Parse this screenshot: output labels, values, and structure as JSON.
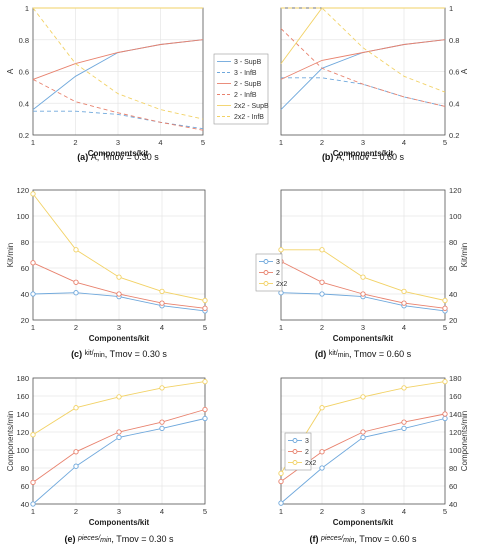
{
  "colors": {
    "blue": "#6fa8dc",
    "red": "#e8826e",
    "yellow": "#f2d266",
    "frame": "#555555",
    "grid": "#e6e6e6"
  },
  "legends": {
    "top": [
      "3 - SupB",
      "3 - InfB",
      "2 - SupB",
      "2 - InfB",
      "2x2 - SupB",
      "2x2 - InfB"
    ],
    "middle": [
      "3",
      "2",
      "2x2"
    ],
    "bottom": [
      "3",
      "2",
      "2x2"
    ]
  },
  "chart_data": [
    {
      "id": "a",
      "type": "line",
      "tag": "(a)",
      "caption": "A, Tmov = 0.30 s",
      "xlabel": "Components/kit",
      "ylabel": "A",
      "xlim": [
        1,
        5
      ],
      "ylim": [
        0.2,
        1
      ],
      "yticks": [
        0.2,
        0.4,
        0.6,
        0.8,
        1
      ],
      "yaxis": "left",
      "x": [
        1,
        2,
        3,
        4,
        5
      ],
      "series": [
        {
          "name": "3 - SupB",
          "values": [
            0.36,
            0.57,
            0.72,
            0.77,
            0.8
          ],
          "color": "blue",
          "dash": false
        },
        {
          "name": "3 - InfB",
          "values": [
            0.35,
            0.35,
            0.33,
            0.28,
            0.24
          ],
          "color": "blue",
          "dash": true
        },
        {
          "name": "2 - SupB",
          "values": [
            0.55,
            0.65,
            0.72,
            0.77,
            0.8
          ],
          "color": "red",
          "dash": false
        },
        {
          "name": "2 - InfB",
          "values": [
            0.55,
            0.41,
            0.34,
            0.28,
            0.23
          ],
          "color": "red",
          "dash": true
        },
        {
          "name": "2x2 - SupB",
          "values": [
            1.0,
            1.0,
            1.0,
            1.0,
            1.0
          ],
          "color": "yellow",
          "dash": false
        },
        {
          "name": "2x2 - InfB",
          "values": [
            1.0,
            0.65,
            0.46,
            0.36,
            0.3
          ],
          "color": "yellow",
          "dash": true
        }
      ]
    },
    {
      "id": "b",
      "type": "line",
      "tag": "(b)",
      "caption": "A, Tmov = 0.60 s",
      "xlabel": "Components/kit",
      "ylabel": "A",
      "xlim": [
        1,
        5
      ],
      "ylim": [
        0.2,
        1
      ],
      "yticks": [
        0.2,
        0.4,
        0.6,
        0.8,
        1
      ],
      "yaxis": "right",
      "x": [
        1,
        2,
        3,
        4,
        5
      ],
      "series": [
        {
          "name": "3 - SupB",
          "values": [
            0.36,
            0.62,
            0.72,
            0.77,
            0.8
          ],
          "color": "blue",
          "dash": false
        },
        {
          "name": "3 - InfB",
          "values": [
            0.56,
            0.56,
            0.52,
            0.44,
            0.38
          ],
          "color": "blue",
          "dash": true
        },
        {
          "name": "2 - SupB",
          "values": [
            0.55,
            0.67,
            0.72,
            0.77,
            0.8
          ],
          "color": "red",
          "dash": false
        },
        {
          "name": "2 - InfB",
          "values": [
            0.87,
            0.62,
            0.52,
            0.44,
            0.38
          ],
          "color": "red",
          "dash": true
        },
        {
          "name": "2x2 - SupB",
          "values": [
            0.65,
            1.0,
            1.0,
            1.0,
            1.0
          ],
          "color": "yellow",
          "dash": false
        },
        {
          "name": "2x2 - InfB",
          "values": [
            1.0,
            1.0,
            0.75,
            0.57,
            0.47
          ],
          "color": "yellow",
          "dash": true
        }
      ]
    },
    {
      "id": "c",
      "type": "line",
      "tag": "(c)",
      "caption_unit": "kit/",
      "caption_unit_sub": "min",
      "caption_rest": ", Tmov = 0.30 s",
      "xlabel": "Components/kit",
      "ylabel": "Kit/min",
      "xlim": [
        1,
        5
      ],
      "ylim": [
        20,
        120
      ],
      "yticks": [
        20,
        40,
        60,
        80,
        100,
        120
      ],
      "yaxis": "left",
      "x": [
        1,
        2,
        3,
        4,
        5
      ],
      "series": [
        {
          "name": "3",
          "values": [
            40,
            41,
            38,
            31,
            27
          ],
          "color": "blue",
          "dash": false
        },
        {
          "name": "2",
          "values": [
            64,
            49,
            40,
            33,
            29
          ],
          "color": "red",
          "dash": false
        },
        {
          "name": "2x2",
          "values": [
            117,
            74,
            53,
            42,
            35
          ],
          "color": "yellow",
          "dash": false
        }
      ]
    },
    {
      "id": "d",
      "type": "line",
      "tag": "(d)",
      "caption_unit": "kit/",
      "caption_unit_sub": "min",
      "caption_rest": ", Tmov = 0.60 s",
      "xlabel": "Components/kit",
      "ylabel": "Kit/min",
      "xlim": [
        1,
        5
      ],
      "ylim": [
        20,
        120
      ],
      "yticks": [
        20,
        40,
        60,
        80,
        100,
        120
      ],
      "yaxis": "right",
      "x": [
        1,
        2,
        3,
        4,
        5
      ],
      "series": [
        {
          "name": "3",
          "values": [
            41,
            40,
            38,
            31,
            27
          ],
          "color": "blue",
          "dash": false
        },
        {
          "name": "2",
          "values": [
            65,
            49,
            40,
            33,
            29
          ],
          "color": "red",
          "dash": false
        },
        {
          "name": "2x2",
          "values": [
            74,
            74,
            53,
            42,
            35
          ],
          "color": "yellow",
          "dash": false
        }
      ]
    },
    {
      "id": "e",
      "type": "line",
      "tag": "(e)",
      "caption_unit": "pieces/",
      "caption_unit_sub": "min",
      "caption_rest": ", Tmov = 0.30 s",
      "xlabel": "Components/kit",
      "ylabel": "Components/min",
      "xlim": [
        1,
        5
      ],
      "ylim": [
        40,
        180
      ],
      "yticks": [
        40,
        60,
        80,
        100,
        120,
        140,
        160,
        180
      ],
      "yaxis": "left",
      "x": [
        1,
        2,
        3,
        4,
        5
      ],
      "series": [
        {
          "name": "3",
          "values": [
            40,
            82,
            114,
            124,
            135
          ],
          "color": "blue",
          "dash": false
        },
        {
          "name": "2",
          "values": [
            64,
            98,
            120,
            131,
            145
          ],
          "color": "red",
          "dash": false
        },
        {
          "name": "2x2",
          "values": [
            117,
            147,
            159,
            169,
            176
          ],
          "color": "yellow",
          "dash": false
        }
      ]
    },
    {
      "id": "f",
      "type": "line",
      "tag": "(f)",
      "caption_unit": "pieces/",
      "caption_unit_sub": "min",
      "caption_rest": ", Tmov = 0.60 s",
      "xlabel": "Components/kit",
      "ylabel": "Components/min",
      "xlim": [
        1,
        5
      ],
      "ylim": [
        40,
        180
      ],
      "yticks": [
        40,
        60,
        80,
        100,
        120,
        140,
        160,
        180
      ],
      "yaxis": "right",
      "x": [
        1,
        2,
        3,
        4,
        5
      ],
      "series": [
        {
          "name": "3",
          "values": [
            41,
            80,
            114,
            124,
            135
          ],
          "color": "blue",
          "dash": false
        },
        {
          "name": "2",
          "values": [
            65,
            98,
            120,
            131,
            140
          ],
          "color": "red",
          "dash": false
        },
        {
          "name": "2x2",
          "values": [
            74,
            147,
            159,
            169,
            176
          ],
          "color": "yellow",
          "dash": false
        }
      ]
    }
  ]
}
